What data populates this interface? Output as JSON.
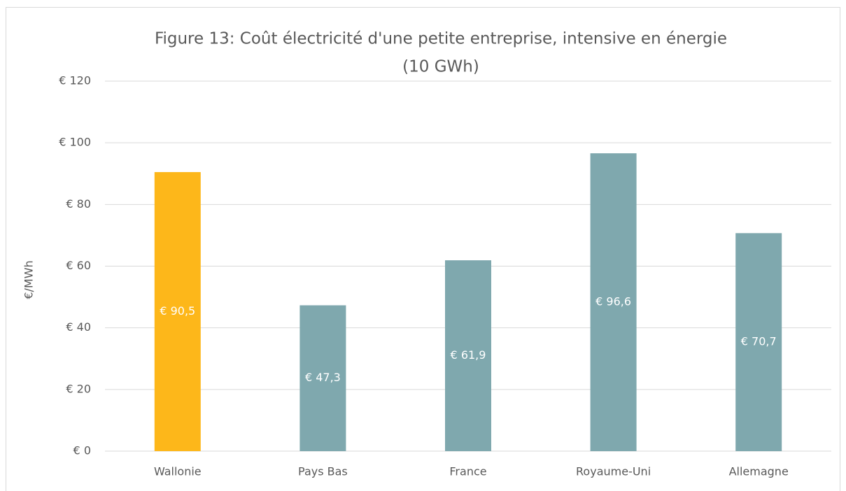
{
  "chart_data": {
    "type": "bar",
    "title": [
      "Figure 13: Coût électricité d'une petite entreprise, intensive en énergie",
      "(10 GWh)"
    ],
    "y_label": "€/MWh",
    "categories": [
      "Wallonie",
      "Pays Bas",
      "France",
      "Royaume-Uni",
      "Allemagne"
    ],
    "values": [
      90.5,
      47.3,
      61.9,
      96.6,
      70.7
    ],
    "value_labels": [
      "€ 90,5",
      "€ 47,3",
      "€ 61,9",
      "€ 96,6",
      "€ 70,7"
    ],
    "colors": [
      "#FDB71A",
      "#7FA8AE",
      "#7FA8AE",
      "#7FA8AE",
      "#7FA8AE"
    ],
    "ylim": [
      0,
      120
    ],
    "yticks": [
      {
        "value": 0,
        "label": "€ 0"
      },
      {
        "value": 20,
        "label": "€ 20"
      },
      {
        "value": 40,
        "label": "€ 40"
      },
      {
        "value": 60,
        "label": "€ 60"
      },
      {
        "value": 80,
        "label": "€ 80"
      },
      {
        "value": 100,
        "label": "€ 100"
      },
      {
        "value": 120,
        "label": "€ 120"
      }
    ],
    "grid": true
  }
}
